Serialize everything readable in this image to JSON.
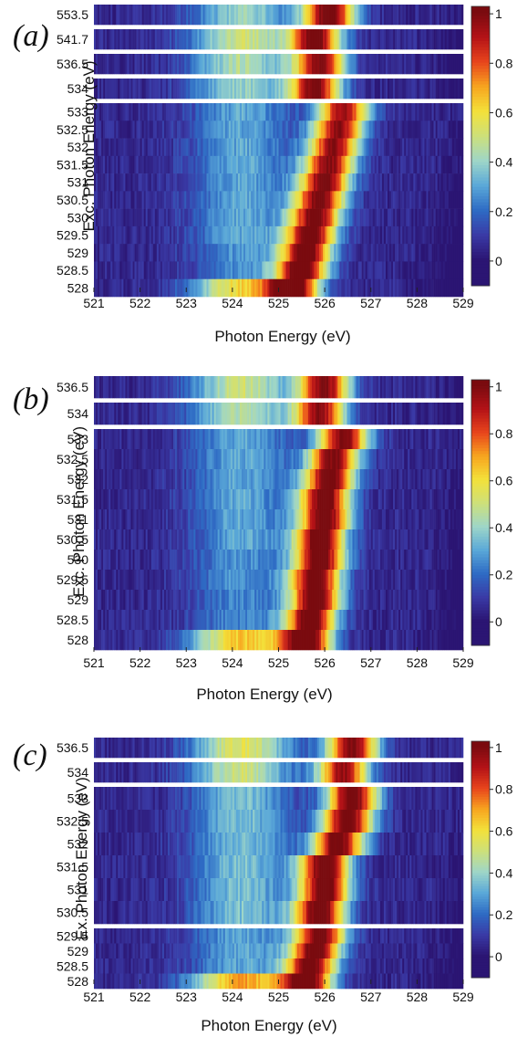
{
  "chart_data": [
    {
      "type": "heatmap",
      "panel_label": "(a)",
      "xlabel": "Photon Energy (eV)",
      "ylabel": "Exc. Photon Energy (eV)",
      "xlim": [
        521,
        529
      ],
      "xticks": [
        "521",
        "522",
        "523",
        "524",
        "525",
        "526",
        "527",
        "528",
        "529"
      ],
      "rows": [
        "553.5",
        "541.7",
        "536.5",
        "534",
        "533",
        "532.5",
        "532",
        "531.5",
        "531",
        "530.5",
        "530",
        "529.5",
        "529",
        "528.5",
        "528"
      ],
      "row_groups": [
        [
          0,
          0
        ],
        [
          1,
          1
        ],
        [
          2,
          2
        ],
        [
          3,
          3
        ],
        [
          4,
          14
        ]
      ],
      "peak_center": [
        526.1,
        525.8,
        525.9,
        525.8,
        526.4,
        526.3,
        526.2,
        526.1,
        526.0,
        525.9,
        525.8,
        525.7,
        525.6,
        525.5,
        525.3
      ],
      "peak_intensity": [
        1.0,
        0.95,
        0.92,
        0.92,
        0.9,
        0.92,
        0.92,
        0.94,
        0.96,
        0.97,
        0.97,
        0.98,
        0.98,
        1.0,
        1.0
      ],
      "shoulder_intensity": [
        0.35,
        0.45,
        0.4,
        0.35,
        0.25,
        0.25,
        0.25,
        0.25,
        0.25,
        0.25,
        0.25,
        0.25,
        0.22,
        0.2,
        0.55
      ],
      "colorbar": {
        "ticks": [
          "1",
          "0.8",
          "0.6",
          "0.4",
          "0.2",
          "0"
        ],
        "range": [
          -0.1,
          1.03
        ]
      },
      "colorscale": [
        "#2b1573",
        "#3a3aa6",
        "#2e6bc4",
        "#5aa8d8",
        "#9ed6c8",
        "#cde07a",
        "#f3e13a",
        "#f7a51f",
        "#e8451c",
        "#b41217",
        "#7a0b0f"
      ]
    },
    {
      "type": "heatmap",
      "panel_label": "(b)",
      "xlabel": "Photon Energy (eV)",
      "ylabel": "Exc. Photon Energy (eV)",
      "xlim": [
        521,
        529
      ],
      "xticks": [
        "521",
        "522",
        "523",
        "524",
        "525",
        "526",
        "527",
        "528",
        "529"
      ],
      "rows": [
        "536.5",
        "534",
        "533",
        "532.5",
        "532",
        "531.5",
        "531",
        "530.5",
        "530",
        "529.5",
        "529",
        "528.5",
        "528"
      ],
      "row_groups": [
        [
          0,
          0
        ],
        [
          1,
          1
        ],
        [
          2,
          12
        ]
      ],
      "peak_center": [
        526.0,
        525.9,
        526.4,
        526.2,
        526.1,
        526.0,
        526.0,
        525.9,
        525.9,
        525.8,
        525.8,
        525.7,
        525.6
      ],
      "peak_intensity": [
        0.92,
        0.9,
        0.95,
        0.96,
        0.98,
        1.0,
        1.0,
        1.0,
        1.0,
        1.0,
        1.0,
        1.0,
        1.0
      ],
      "shoulder_intensity": [
        0.45,
        0.4,
        0.25,
        0.25,
        0.25,
        0.25,
        0.25,
        0.25,
        0.22,
        0.22,
        0.2,
        0.2,
        0.6
      ],
      "colorbar": {
        "ticks": [
          "1",
          "0.8",
          "0.6",
          "0.4",
          "0.2",
          "0"
        ],
        "range": [
          -0.1,
          1.03
        ]
      },
      "colorscale": [
        "#2b1573",
        "#3a3aa6",
        "#2e6bc4",
        "#5aa8d8",
        "#9ed6c8",
        "#cde07a",
        "#f3e13a",
        "#f7a51f",
        "#e8451c",
        "#b41217",
        "#7a0b0f"
      ]
    },
    {
      "type": "heatmap",
      "panel_label": "(c)",
      "xlabel": "Photon Energy (eV)",
      "ylabel": "Ex. Photon Energy (eV)",
      "xlim": [
        521,
        529
      ],
      "xticks": [
        "521",
        "522",
        "523",
        "524",
        "525",
        "526",
        "527",
        "528",
        "529"
      ],
      "rows": [
        "536.5",
        "534",
        "533",
        "532.5",
        "532",
        "531.5",
        "531",
        "530.5",
        "529.5",
        "529",
        "528.5",
        "528"
      ],
      "row_groups": [
        [
          0,
          0
        ],
        [
          1,
          1
        ],
        [
          2,
          7
        ],
        [
          8,
          11
        ]
      ],
      "peak_center": [
        526.6,
        526.4,
        526.6,
        526.5,
        526.3,
        526.0,
        526.0,
        525.9,
        525.9,
        525.8,
        525.7,
        525.6
      ],
      "peak_intensity": [
        0.95,
        0.9,
        1.0,
        1.0,
        0.98,
        1.0,
        1.0,
        1.0,
        0.98,
        0.98,
        0.98,
        1.0
      ],
      "shoulder_intensity": [
        0.5,
        0.45,
        0.3,
        0.3,
        0.3,
        0.3,
        0.3,
        0.3,
        0.25,
        0.25,
        0.25,
        0.65
      ],
      "colorbar": {
        "ticks": [
          "1",
          "0.8",
          "0.6",
          "0.4",
          "0.2",
          "0"
        ],
        "range": [
          -0.1,
          1.03
        ]
      },
      "colorscale": [
        "#2b1573",
        "#3a3aa6",
        "#2e6bc4",
        "#5aa8d8",
        "#9ed6c8",
        "#cde07a",
        "#f3e13a",
        "#f7a51f",
        "#e8451c",
        "#b41217",
        "#7a0b0f"
      ]
    }
  ]
}
